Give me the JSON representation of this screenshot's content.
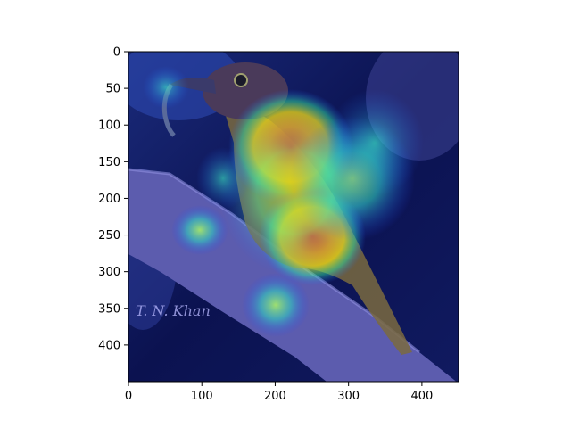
{
  "figure": {
    "image_description_subject": "bird-on-branch-with-heatmap-overlay",
    "watermark": "T. N. Khan"
  },
  "chart_data": {
    "type": "heatmap",
    "title": "",
    "xlabel": "",
    "ylabel": "",
    "xlim": [
      0,
      450
    ],
    "ylim": [
      450,
      0
    ],
    "x_ticks": [
      0,
      100,
      200,
      300,
      400
    ],
    "y_ticks": [
      0,
      50,
      100,
      150,
      200,
      250,
      300,
      350,
      400
    ],
    "grid": false,
    "colormap": "jet",
    "hotspots": [
      {
        "x": 230,
        "y": 150,
        "level": 1.0
      },
      {
        "x": 260,
        "y": 260,
        "level": 0.9
      },
      {
        "x": 300,
        "y": 200,
        "level": 0.6
      },
      {
        "x": 200,
        "y": 350,
        "level": 0.55
      },
      {
        "x": 100,
        "y": 240,
        "level": 0.45
      },
      {
        "x": 60,
        "y": 50,
        "level": 0.4
      }
    ]
  },
  "colors": {
    "background_dark": "#0b1250",
    "branch": "#5a5aa8",
    "jet_high": "#ff3a00",
    "jet_mid": "#ffd000",
    "jet_low": "#20d0a0"
  }
}
